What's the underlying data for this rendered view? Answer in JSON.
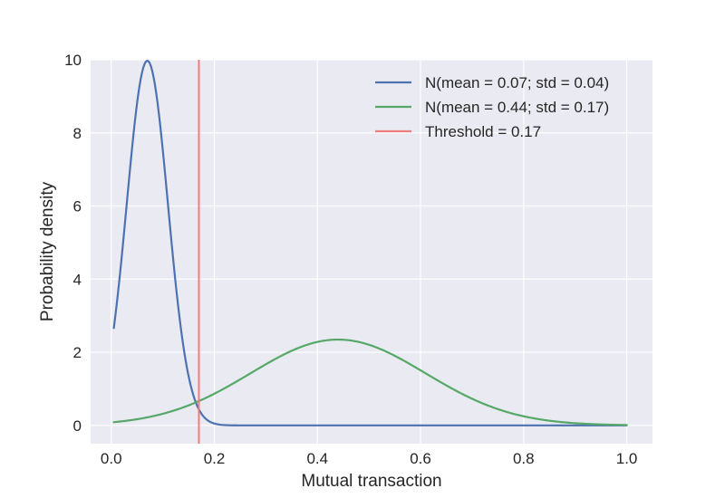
{
  "chart_data": {
    "type": "line",
    "title": "",
    "xlabel": "Mutual transaction",
    "ylabel": "Probability density",
    "xlim": [
      -0.04,
      1.05
    ],
    "ylim": [
      -0.5,
      10
    ],
    "xticks": [
      0.0,
      0.2,
      0.4,
      0.6,
      0.8,
      1.0
    ],
    "xtick_labels": [
      "0.0",
      "0.2",
      "0.4",
      "0.6",
      "0.8",
      "1.0"
    ],
    "yticks": [
      0,
      2,
      4,
      6,
      8,
      10
    ],
    "ytick_labels": [
      "0",
      "2",
      "4",
      "6",
      "8",
      "10"
    ],
    "grid": true,
    "background": "#eaeaf2",
    "legend_position": "top-right",
    "x_range": [
      0.005,
      1.0
    ],
    "series": [
      {
        "name": "N(mean = 0.07; std = 0.04)",
        "distribution": "normal",
        "mean": 0.07,
        "std": 0.04,
        "color": "#4c72b0"
      },
      {
        "name": "N(mean = 0.44; std = 0.17)",
        "distribution": "normal",
        "mean": 0.44,
        "std": 0.17,
        "color": "#55a868"
      }
    ],
    "threshold": {
      "name": "Threshold = 0.17",
      "x": 0.17,
      "color": "#f07d7d"
    }
  }
}
